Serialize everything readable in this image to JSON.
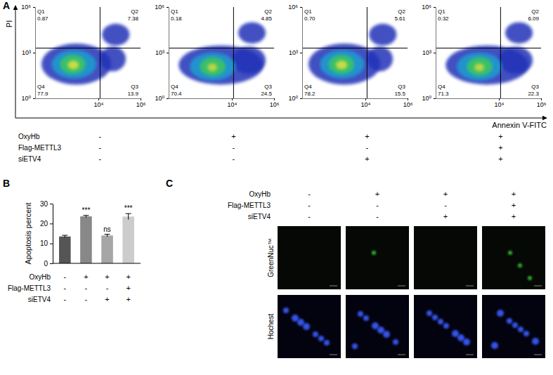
{
  "figure": {
    "panel_labels": [
      "A",
      "B",
      "C"
    ],
    "conditions": {
      "names": [
        "OxyHb",
        "Flag-METTL3",
        "siETV4"
      ],
      "groups": [
        [
          "-",
          "-",
          "-"
        ],
        [
          "+",
          "-",
          "-"
        ],
        [
          "+",
          "-",
          "+"
        ],
        [
          "+",
          "+",
          "+"
        ]
      ]
    },
    "images": {
      "row_labels": [
        "GreenNuc™",
        "Hochest"
      ]
    }
  },
  "chart_data": [
    {
      "type": "scatter",
      "x_label": "Annexin V-FITC",
      "y_label": "PI",
      "log": true,
      "xlim": [
        10,
        1000000
      ],
      "ylim": [
        1,
        1000000
      ],
      "xticks": [
        {
          "value": 10000,
          "label": "10⁴"
        },
        {
          "value": 1000000,
          "label": "10⁶"
        }
      ],
      "yticks": [
        {
          "value": 1,
          "label": "10⁰"
        },
        {
          "value": 1000,
          "label": "10³"
        },
        {
          "value": 1000000,
          "label": "10⁶"
        }
      ],
      "gate": {
        "x": 12000,
        "y": 2000
      },
      "quadrants": {
        "names": [
          "Q1",
          "Q2",
          "Q3",
          "Q4"
        ],
        "values": [
          0.87,
          7.38,
          13.9,
          77.9
        ],
        "value_labels": [
          "0.87",
          "7.38",
          "13.9",
          "77.9"
        ]
      },
      "clouds": [
        {
          "x": [
            20,
            40000
          ],
          "y": [
            8,
            4000
          ],
          "color": "#2233b8"
        },
        {
          "x": [
            12000,
            200000
          ],
          "y": [
            60,
            2500
          ],
          "color": "#2233b8"
        },
        {
          "x": [
            15000,
            300000
          ],
          "y": [
            3000,
            80000
          ],
          "color": "#2233b8"
        },
        {
          "x": [
            60,
            8000
          ],
          "y": [
            20,
            1500
          ],
          "color": "#1f9fd0"
        },
        {
          "x": [
            150,
            2500
          ],
          "y": [
            40,
            700
          ],
          "color": "#3cc85a"
        },
        {
          "x": [
            350,
            1200
          ],
          "y": [
            80,
            300
          ],
          "color": "#e6e03a"
        }
      ]
    },
    {
      "type": "scatter",
      "log": true,
      "xlim": [
        10,
        1000000
      ],
      "ylim": [
        1,
        1000000
      ],
      "xticks": [
        {
          "value": 10000,
          "label": "10⁴"
        },
        {
          "value": 1000000,
          "label": "10⁶"
        }
      ],
      "yticks": [
        {
          "value": 1,
          "label": "10⁰"
        },
        {
          "value": 1000,
          "label": "10³"
        },
        {
          "value": 1000000,
          "label": "10⁶"
        }
      ],
      "gate": {
        "x": 12000,
        "y": 2000
      },
      "quadrants": {
        "names": [
          "Q1",
          "Q2",
          "Q3",
          "Q4"
        ],
        "values": [
          0.18,
          4.85,
          24.5,
          70.4
        ],
        "value_labels": [
          "0.18",
          "4.85",
          "24.5",
          "70.4"
        ]
      },
      "clouds": [
        {
          "x": [
            30,
            300000
          ],
          "y": [
            8,
            3000
          ],
          "color": "#2233b8"
        },
        {
          "x": [
            10000,
            400000
          ],
          "y": [
            40,
            2500
          ],
          "color": "#2233b8"
        },
        {
          "x": [
            20000,
            400000
          ],
          "y": [
            4000,
            100000
          ],
          "color": "#2233b8"
        },
        {
          "x": [
            100,
            15000
          ],
          "y": [
            15,
            1000
          ],
          "color": "#1f9fd0"
        },
        {
          "x": [
            300,
            5000
          ],
          "y": [
            30,
            500
          ],
          "color": "#3cc85a"
        },
        {
          "x": [
            700,
            2000
          ],
          "y": [
            60,
            200
          ],
          "color": "#d8d83a"
        }
      ]
    },
    {
      "type": "scatter",
      "log": true,
      "xlim": [
        10,
        1000000
      ],
      "ylim": [
        1,
        1000000
      ],
      "xticks": [
        {
          "value": 10000,
          "label": "10⁴"
        },
        {
          "value": 1000000,
          "label": "10⁶"
        }
      ],
      "yticks": [
        {
          "value": 1,
          "label": "10⁰"
        },
        {
          "value": 1000,
          "label": "10³"
        },
        {
          "value": 1000000,
          "label": "10⁶"
        }
      ],
      "gate": {
        "x": 12000,
        "y": 2000
      },
      "quadrants": {
        "names": [
          "Q1",
          "Q2",
          "Q3",
          "Q4"
        ],
        "values": [
          0.7,
          5.61,
          15.5,
          78.2
        ],
        "value_labels": [
          "0.70",
          "5.61",
          "15.5",
          "78.2"
        ]
      },
      "clouds": [
        {
          "x": [
            20,
            50000
          ],
          "y": [
            8,
            4000
          ],
          "color": "#2233b8"
        },
        {
          "x": [
            12000,
            200000
          ],
          "y": [
            60,
            2500
          ],
          "color": "#2233b8"
        },
        {
          "x": [
            15000,
            300000
          ],
          "y": [
            3000,
            80000
          ],
          "color": "#2233b8"
        },
        {
          "x": [
            70,
            9000
          ],
          "y": [
            20,
            1500
          ],
          "color": "#1f9fd0"
        },
        {
          "x": [
            180,
            3000
          ],
          "y": [
            40,
            700
          ],
          "color": "#3cc85a"
        },
        {
          "x": [
            400,
            1400
          ],
          "y": [
            80,
            300
          ],
          "color": "#e6e03a"
        }
      ]
    },
    {
      "type": "scatter",
      "log": true,
      "xlim": [
        10,
        1000000
      ],
      "ylim": [
        1,
        1000000
      ],
      "xticks": [
        {
          "value": 10000,
          "label": "10⁴"
        },
        {
          "value": 1000000,
          "label": "10⁶"
        }
      ],
      "yticks": [
        {
          "value": 1,
          "label": "10⁰"
        },
        {
          "value": 1000,
          "label": "10³"
        },
        {
          "value": 1000000,
          "label": "10⁶"
        }
      ],
      "gate": {
        "x": 12000,
        "y": 2000
      },
      "quadrants": {
        "names": [
          "Q1",
          "Q2",
          "Q3",
          "Q4"
        ],
        "values": [
          0.32,
          6.09,
          22.3,
          71.3
        ],
        "value_labels": [
          "0.32",
          "6.09",
          "22.3",
          "71.3"
        ]
      },
      "clouds": [
        {
          "x": [
            30,
            250000
          ],
          "y": [
            8,
            3000
          ],
          "color": "#2233b8"
        },
        {
          "x": [
            10000,
            400000
          ],
          "y": [
            40,
            2500
          ],
          "color": "#2233b8"
        },
        {
          "x": [
            20000,
            400000
          ],
          "y": [
            4000,
            100000
          ],
          "color": "#2233b8"
        },
        {
          "x": [
            100,
            14000
          ],
          "y": [
            15,
            1000
          ],
          "color": "#1f9fd0"
        },
        {
          "x": [
            300,
            5000
          ],
          "y": [
            30,
            500
          ],
          "color": "#3cc85a"
        },
        {
          "x": [
            700,
            2000
          ],
          "y": [
            60,
            200
          ],
          "color": "#d8d83a"
        }
      ]
    },
    {
      "type": "bar",
      "y_label": "Apoptosis percent",
      "values": [
        13.5,
        23.6,
        14,
        23.5
      ],
      "errors": [
        0.6,
        0.5,
        0.6,
        1.5
      ],
      "colors": [
        "#555555",
        "#888888",
        "#a6a6a6",
        "#cccccc"
      ],
      "significance": [
        null,
        "***",
        "ns",
        "***"
      ],
      "ylim": [
        0,
        30
      ],
      "yticks": [
        0,
        10,
        20,
        30
      ]
    }
  ]
}
